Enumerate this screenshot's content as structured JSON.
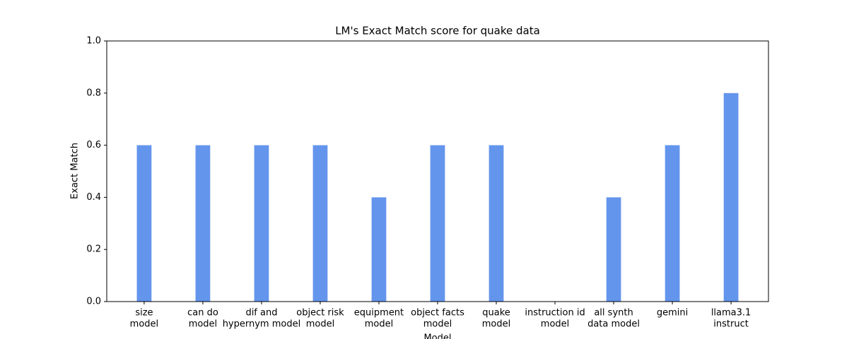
{
  "chart_data": {
    "type": "bar",
    "title": "LM's Exact Match score for quake data",
    "x_label": "Model",
    "y_label": "Exact Match",
    "categories": [
      [
        "size",
        "model"
      ],
      [
        "can do",
        "model"
      ],
      [
        "dif and",
        "hypernym model"
      ],
      [
        "object risk",
        "model"
      ],
      [
        "equipment",
        "model"
      ],
      [
        "object facts",
        "model"
      ],
      [
        "quake",
        "model"
      ],
      [
        "instruction id",
        "model"
      ],
      [
        "all synth",
        "data model"
      ],
      [
        "gemini"
      ],
      [
        "llama3.1",
        "instruct"
      ]
    ],
    "values": [
      0.6,
      0.6,
      0.6,
      0.6,
      0.4,
      0.6,
      0.6,
      0,
      0.4,
      0.6,
      0.8
    ],
    "color": "#6495ed",
    "ylim": [
      0,
      1
    ],
    "yticks": [
      {
        "value": 0,
        "label": "0.0"
      },
      0.2,
      0.4,
      0.6,
      0.8,
      {
        "value": 1,
        "label": "1.0"
      }
    ],
    "grid": false
  }
}
